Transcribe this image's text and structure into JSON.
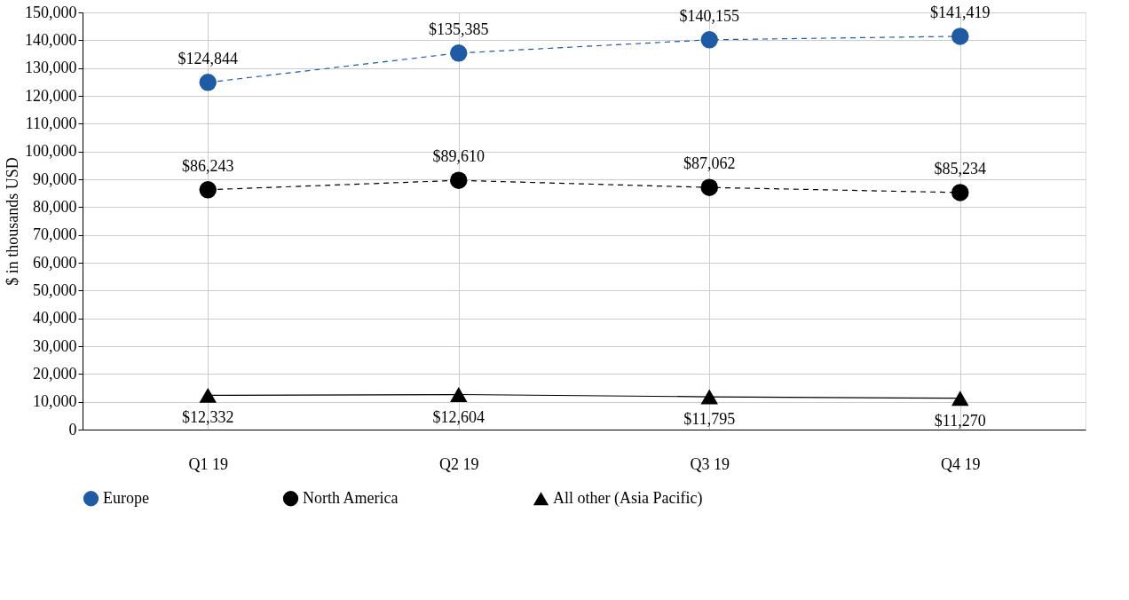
{
  "chart_data": {
    "type": "line",
    "ylabel": "$ in thousands USD",
    "categories": [
      "Q1 19",
      "Q2 19",
      "Q3 19",
      "Q4 19"
    ],
    "series": [
      {
        "name": "Europe",
        "color": "#1f5ba5",
        "values": [
          124844,
          135385,
          140155,
          141419
        ],
        "value_labels": [
          "$124,844",
          "$135,385",
          "$140,155",
          "$141,419"
        ],
        "marker": "circle",
        "line_style": "dashed"
      },
      {
        "name": "North America",
        "color": "#000000",
        "values": [
          86243,
          89610,
          87062,
          85234
        ],
        "value_labels": [
          "$86,243",
          "$89,610",
          "$87,062",
          "$85,234"
        ],
        "marker": "circle",
        "line_style": "dashed"
      },
      {
        "name": "All other (Asia Pacific)",
        "color": "#000000",
        "values": [
          12332,
          12604,
          11795,
          11270
        ],
        "value_labels": [
          "$12,332",
          "$12,604",
          "$11,795",
          "$11,270"
        ],
        "marker": "triangle",
        "line_style": "solid"
      }
    ],
    "ylim": [
      0,
      150000
    ],
    "yticks": [
      0,
      {
        "value": 10000,
        "label": "10,000"
      },
      {
        "value": 20000,
        "label": "20,000"
      },
      {
        "value": 30000,
        "label": "30,000"
      },
      {
        "value": 40000,
        "label": "40,000"
      },
      {
        "value": 50000,
        "label": "50,000"
      },
      {
        "value": 60000,
        "label": "60,000"
      },
      {
        "value": 70000,
        "label": "70,000"
      },
      {
        "value": 80000,
        "label": "80,000"
      },
      {
        "value": 90000,
        "label": "90,000"
      },
      {
        "value": 100000,
        "label": "100,000"
      },
      {
        "value": 110000,
        "label": "110,000"
      },
      {
        "value": 120000,
        "label": "120,000"
      },
      {
        "value": 130000,
        "label": "130,000"
      },
      {
        "value": 140000,
        "label": "140,000"
      },
      {
        "value": 150000,
        "label": "150,000"
      }
    ],
    "grid": true,
    "legend": "bottom"
  }
}
